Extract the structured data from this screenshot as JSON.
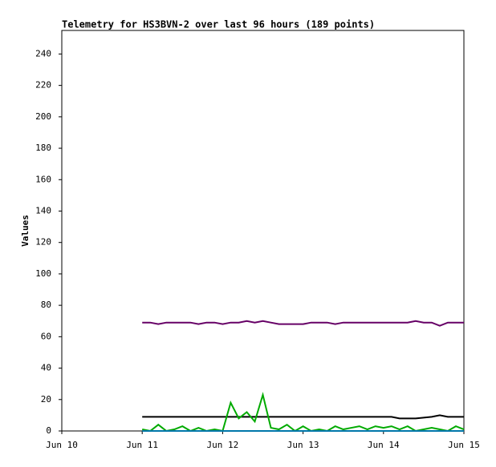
{
  "chart_data": {
    "type": "line",
    "title": "Telemetry for HS3BVN-2 over last 96 hours (189 points)",
    "y_label": "Values",
    "x": [
      1.0,
      1.1,
      1.2,
      1.3,
      1.4,
      1.5,
      1.6,
      1.7,
      1.8,
      1.9,
      2.0,
      2.1,
      2.2,
      2.3,
      2.4,
      2.5,
      2.6,
      2.7,
      2.8,
      2.9,
      3.0,
      3.1,
      3.2,
      3.3,
      3.4,
      3.5,
      3.6,
      3.7,
      3.8,
      3.9,
      4.0,
      4.1,
      4.2,
      4.3,
      4.4,
      4.5,
      4.6,
      4.7,
      4.8,
      4.9,
      5.0
    ],
    "series": [
      {
        "color": "#660066",
        "values": [
          69,
          69,
          68,
          69,
          69,
          69,
          69,
          68,
          69,
          69,
          68,
          69,
          69,
          70,
          69,
          70,
          69,
          68,
          68,
          68,
          68,
          69,
          69,
          69,
          68,
          69,
          69,
          69,
          69,
          69,
          69,
          69,
          69,
          69,
          70,
          69,
          69,
          67,
          69,
          69,
          69
        ]
      },
      {
        "color": "#000000",
        "values": [
          9,
          9,
          9,
          9,
          9,
          9,
          9,
          9,
          9,
          9,
          9,
          9,
          9,
          9,
          9,
          9,
          9,
          9,
          9,
          9,
          9,
          9,
          9,
          9,
          9,
          9,
          9,
          9,
          9,
          9,
          9,
          9,
          8,
          8,
          8,
          8.5,
          9,
          10,
          9,
          9,
          9
        ]
      },
      {
        "color": "#00aa00",
        "values": [
          1,
          0,
          4,
          0,
          1,
          3,
          0,
          2,
          0,
          1,
          0,
          18,
          8,
          12,
          6,
          23,
          2,
          1,
          4,
          0,
          3,
          0,
          1,
          0,
          3,
          1,
          2,
          3,
          1,
          3,
          2,
          3,
          1,
          3,
          0,
          1,
          2,
          1,
          0,
          3,
          1
        ]
      },
      {
        "color": "#0077aa",
        "values": [
          0,
          0,
          0,
          0,
          0,
          0,
          0,
          0,
          0,
          0,
          0,
          0,
          0,
          0,
          0,
          0,
          0,
          0,
          0,
          0,
          0,
          0,
          0,
          0,
          0,
          0,
          0,
          0,
          0,
          0,
          0,
          0,
          0,
          0,
          0,
          0,
          0,
          0,
          0,
          0,
          0
        ]
      }
    ],
    "xlim": [
      0,
      5
    ],
    "xticks": [
      {
        "value": 0,
        "label": "Jun 10"
      },
      {
        "value": 1,
        "label": "Jun 11"
      },
      {
        "value": 2,
        "label": "Jun 12"
      },
      {
        "value": 3,
        "label": "Jun 13"
      },
      {
        "value": 4,
        "label": "Jun 14"
      },
      {
        "value": 5,
        "label": "Jun 15"
      }
    ],
    "ylim": [
      0,
      255
    ],
    "yticks": [
      0,
      20,
      40,
      60,
      80,
      100,
      120,
      140,
      160,
      180,
      200,
      220,
      240
    ],
    "grid": false
  }
}
